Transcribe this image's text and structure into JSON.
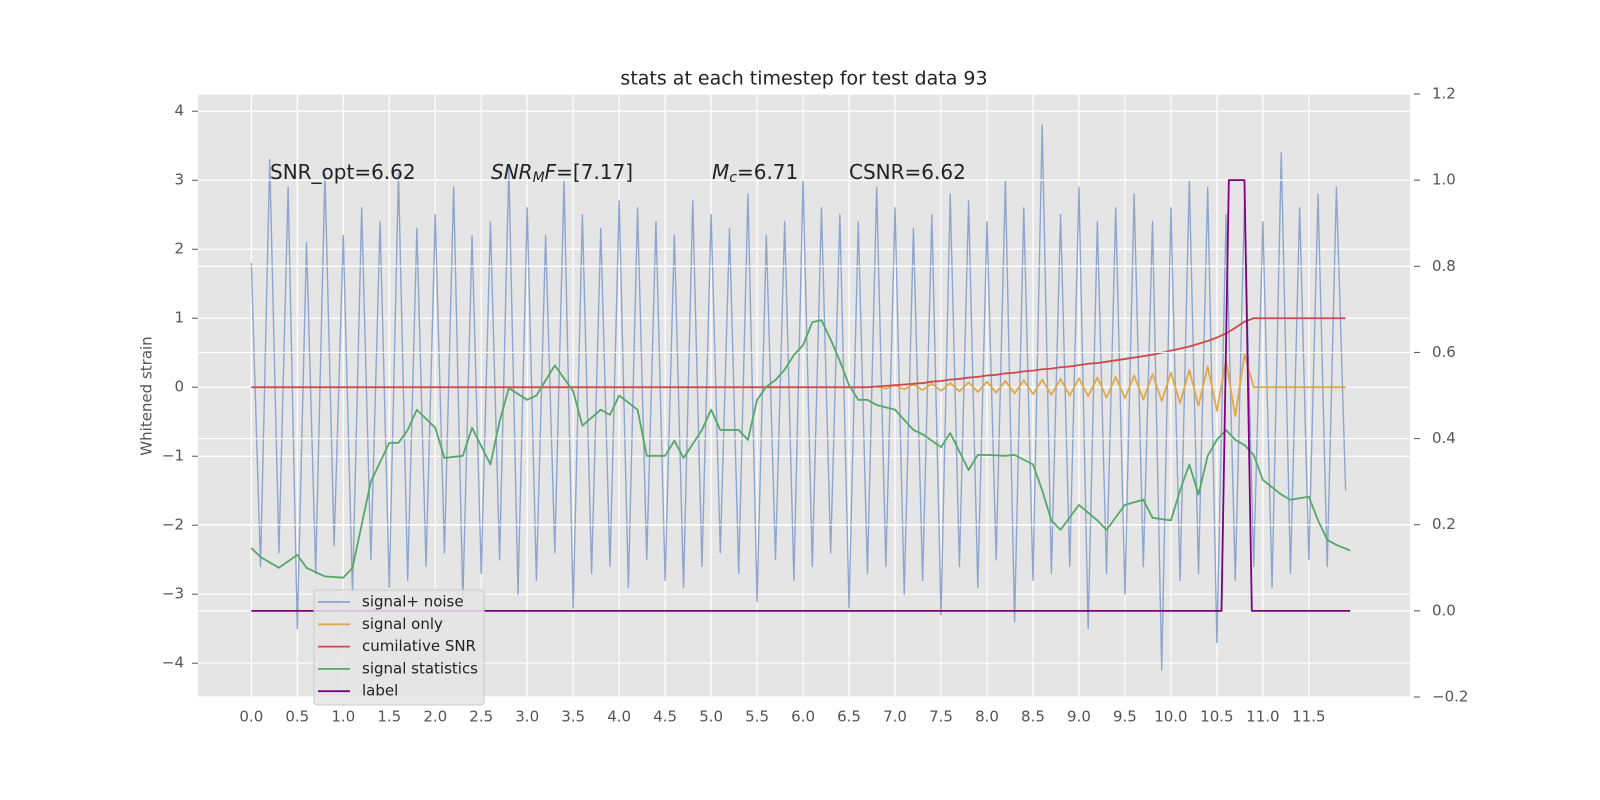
{
  "chart_data": {
    "type": "line",
    "title": "stats at each timestep for test data 93",
    "ylabel": "Whitened strain",
    "annotations": [
      {
        "parts": [
          {
            "text": "SNR_opt=6.62"
          }
        ]
      },
      {
        "parts": [
          {
            "text": "SNR",
            "italic": true
          },
          {
            "text": "M",
            "italic": true,
            "sub": true
          },
          {
            "text": "F",
            "italic": true
          },
          {
            "text": "=[7.17]"
          }
        ]
      },
      {
        "parts": [
          {
            "text": "M",
            "italic": true
          },
          {
            "text": "c",
            "italic": true,
            "sub": true
          },
          {
            "text": "=6.71"
          }
        ]
      },
      {
        "parts": [
          {
            "text": "CSNR=6.62"
          }
        ]
      }
    ],
    "xlim": [
      -0.58,
      12.6
    ],
    "ylim": [
      -4.49,
      4.25
    ],
    "y2lim": [
      -0.2,
      1.2
    ],
    "grid": true,
    "xticks": [
      {
        "value": 0,
        "label": "0.0"
      },
      {
        "value": 0.5,
        "label": "0.5"
      },
      {
        "value": 1,
        "label": "1.0"
      },
      {
        "value": 1.5,
        "label": "1.5"
      },
      {
        "value": 2,
        "label": "2.0"
      },
      {
        "value": 2.5,
        "label": "2.5"
      },
      {
        "value": 3,
        "label": "3.0"
      },
      {
        "value": 3.5,
        "label": "3.5"
      },
      {
        "value": 4,
        "label": "4.0"
      },
      {
        "value": 4.5,
        "label": "4.5"
      },
      {
        "value": 5,
        "label": "5.0"
      },
      {
        "value": 5.5,
        "label": "5.5"
      },
      {
        "value": 6,
        "label": "6.0"
      },
      {
        "value": 6.5,
        "label": "6.5"
      },
      {
        "value": 7,
        "label": "7.0"
      },
      {
        "value": 7.5,
        "label": "7.5"
      },
      {
        "value": 8,
        "label": "8.0"
      },
      {
        "value": 8.5,
        "label": "8.5"
      },
      {
        "value": 9,
        "label": "9.0"
      },
      {
        "value": 9.5,
        "label": "9.5"
      },
      {
        "value": 10,
        "label": "10.0"
      },
      {
        "value": 10.5,
        "label": "10.5"
      },
      {
        "value": 11,
        "label": "11.0"
      },
      {
        "value": 11.5,
        "label": "11.5"
      }
    ],
    "yticks": [
      {
        "value": -4,
        "label": "−4"
      },
      {
        "value": -3,
        "label": "−3"
      },
      {
        "value": -2,
        "label": "−2"
      },
      {
        "value": -1,
        "label": "−1"
      },
      0,
      1,
      2,
      3,
      4
    ],
    "y2ticks": [
      {
        "value": -0.2,
        "label": "−0.2"
      },
      {
        "value": 0,
        "label": "0.0"
      },
      {
        "value": 0.2,
        "label": "0.2"
      },
      {
        "value": 0.4,
        "label": "0.4"
      },
      {
        "value": 0.6,
        "label": "0.6"
      },
      {
        "value": 0.8,
        "label": "0.8"
      },
      {
        "value": 1,
        "label": "1.0"
      },
      {
        "value": 1.2,
        "label": "1.2"
      }
    ],
    "x": [
      0,
      0.1,
      0.2,
      0.3,
      0.4,
      0.5,
      0.6,
      0.7,
      0.8,
      0.9,
      1,
      1.1,
      1.2,
      1.3,
      1.4,
      1.5,
      1.6,
      1.7,
      1.8,
      1.9,
      2,
      2.1,
      2.2,
      2.3,
      2.4,
      2.5,
      2.6,
      2.7,
      2.8,
      2.9,
      3,
      3.1,
      3.2,
      3.3,
      3.4,
      3.5,
      3.6,
      3.7,
      3.8,
      3.9,
      4,
      4.1,
      4.2,
      4.3,
      4.4,
      4.5,
      4.6,
      4.7,
      4.8,
      4.9,
      5,
      5.1,
      5.2,
      5.3,
      5.4,
      5.5,
      5.6,
      5.7,
      5.8,
      5.9,
      6,
      6.1,
      6.2,
      6.3,
      6.4,
      6.5,
      6.6,
      6.7,
      6.8,
      6.9,
      7,
      7.1,
      7.2,
      7.3,
      7.4,
      7.5,
      7.6,
      7.7,
      7.8,
      7.9,
      8,
      8.1,
      8.2,
      8.3,
      8.4,
      8.5,
      8.6,
      8.7,
      8.8,
      8.9,
      9,
      9.1,
      9.2,
      9.3,
      9.4,
      9.5,
      9.6,
      9.7,
      9.8,
      9.9,
      10,
      10.1,
      10.2,
      10.3,
      10.4,
      10.5,
      10.6,
      10.7,
      10.8,
      10.9,
      11,
      11.1,
      11.2,
      11.3,
      11.4,
      11.5,
      11.6,
      11.7,
      11.8,
      11.9
    ],
    "series": [
      {
        "name": "signal+ noise",
        "color": "#8fa5cd",
        "values": [
          1.8,
          -2.6,
          3.3,
          -2.4,
          2.9,
          -3.5,
          2.1,
          -2.7,
          3.1,
          -2.3,
          2.2,
          -3.0,
          2.6,
          -2.5,
          2.4,
          -2.9,
          3.1,
          -2.8,
          2.3,
          -2.6,
          2.5,
          -2.4,
          2.9,
          -3.1,
          2.2,
          -2.7,
          2.4,
          -2.5,
          3.2,
          -3.0,
          2.6,
          -2.8,
          2.2,
          -2.4,
          3.0,
          -3.2,
          2.5,
          -2.7,
          2.3,
          -2.6,
          2.7,
          -2.9,
          2.6,
          -2.5,
          2.4,
          -2.8,
          2.2,
          -2.9,
          2.7,
          -2.6,
          2.5,
          -2.4,
          2.3,
          -2.7,
          2.8,
          -3.1,
          2.2,
          -2.5,
          2.4,
          -2.8,
          3.0,
          -2.6,
          2.6,
          -2.4,
          2.5,
          -3.2,
          2.4,
          -2.7,
          2.9,
          -2.6,
          2.6,
          -3.0,
          2.3,
          -2.8,
          2.5,
          -3.3,
          2.8,
          -2.6,
          2.7,
          -2.9,
          2.4,
          -2.5,
          3.0,
          -3.4,
          2.6,
          -2.8,
          3.8,
          -2.7,
          2.5,
          -2.6,
          2.9,
          -3.5,
          2.4,
          -2.7,
          2.6,
          -3.0,
          2.8,
          -2.6,
          2.4,
          -4.1,
          2.6,
          -2.8,
          3.0,
          -2.7,
          2.9,
          -3.7,
          2.5,
          -2.8,
          2.7,
          -2.6,
          2.4,
          -2.9,
          3.4,
          -2.7,
          2.6,
          -2.5,
          2.8,
          -2.6,
          2.9,
          -1.5
        ]
      },
      {
        "name": "signal only",
        "color": "#e0a94a",
        "values": [
          0,
          0,
          0,
          0,
          0,
          0,
          0,
          0,
          0,
          0,
          0,
          0,
          0,
          0,
          0,
          0,
          0,
          0,
          0,
          0,
          0,
          0,
          0,
          0,
          0,
          0,
          0,
          0,
          0,
          0,
          0,
          0,
          0,
          0,
          0,
          0,
          0,
          0,
          0,
          0,
          0,
          0,
          0,
          0,
          0,
          0,
          0,
          0,
          0,
          0,
          0,
          0,
          0,
          0,
          0,
          0,
          0,
          0,
          0,
          0,
          0,
          0,
          0,
          0,
          0,
          0,
          0,
          0,
          0.01,
          -0.02,
          0.03,
          -0.03,
          0.04,
          -0.04,
          0.05,
          -0.05,
          0.06,
          -0.06,
          0.07,
          -0.07,
          0.08,
          -0.08,
          0.09,
          -0.09,
          0.1,
          -0.1,
          0.11,
          -0.11,
          0.12,
          -0.12,
          0.13,
          -0.13,
          0.14,
          -0.15,
          0.15,
          -0.16,
          0.17,
          -0.18,
          0.19,
          -0.2,
          0.21,
          -0.23,
          0.25,
          -0.27,
          0.3,
          -0.34,
          0.38,
          -0.42,
          0.48,
          0,
          0,
          0,
          0,
          0,
          0,
          0,
          0,
          0,
          0,
          0
        ]
      },
      {
        "name": "cumilative SNR",
        "color": "#d0474a",
        "values": [
          0,
          0,
          0,
          0,
          0,
          0,
          0,
          0,
          0,
          0,
          0,
          0,
          0,
          0,
          0,
          0,
          0,
          0,
          0,
          0,
          0,
          0,
          0,
          0,
          0,
          0,
          0,
          0,
          0,
          0,
          0,
          0,
          0,
          0,
          0,
          0,
          0,
          0,
          0,
          0,
          0,
          0,
          0,
          0,
          0,
          0,
          0,
          0,
          0,
          0,
          0,
          0,
          0,
          0,
          0,
          0,
          0,
          0,
          0,
          0,
          0,
          0,
          0,
          0,
          0,
          0,
          0,
          0,
          0.01,
          0.02,
          0.03,
          0.04,
          0.05,
          0.06,
          0.08,
          0.09,
          0.11,
          0.12,
          0.14,
          0.15,
          0.17,
          0.18,
          0.2,
          0.21,
          0.23,
          0.24,
          0.26,
          0.27,
          0.29,
          0.3,
          0.32,
          0.34,
          0.35,
          0.37,
          0.39,
          0.41,
          0.43,
          0.45,
          0.47,
          0.5,
          0.53,
          0.56,
          0.59,
          0.63,
          0.67,
          0.72,
          0.78,
          0.86,
          0.95,
          1,
          1,
          1,
          1,
          1,
          1,
          1,
          1,
          1,
          1,
          1
        ]
      },
      {
        "name": "signal statistics",
        "color": "#55a868",
        "axis": "y2",
        "x": [
          0,
          0.1,
          0.3,
          0.5,
          0.6,
          0.8,
          1,
          1.1,
          1.3,
          1.5,
          1.6,
          1.7,
          1.8,
          2,
          2.1,
          2.3,
          2.4,
          2.6,
          2.7,
          2.8,
          3,
          3.1,
          3.3,
          3.5,
          3.6,
          3.8,
          3.9,
          4,
          4.2,
          4.3,
          4.5,
          4.6,
          4.7,
          4.9,
          5,
          5.1,
          5.3,
          5.4,
          5.5,
          5.6,
          5.7,
          5.8,
          5.9,
          6,
          6.1,
          6.2,
          6.3,
          6.4,
          6.5,
          6.6,
          6.7,
          6.8,
          7,
          7.2,
          7.3,
          7.5,
          7.6,
          7.8,
          7.9,
          8,
          8.2,
          8.3,
          8.5,
          8.6,
          8.7,
          8.8,
          9,
          9.2,
          9.3,
          9.5,
          9.7,
          9.8,
          10,
          10.1,
          10.2,
          10.3,
          10.4,
          10.5,
          10.6,
          10.7,
          10.8,
          10.9,
          11,
          11.2,
          11.3,
          11.5,
          11.6,
          11.7,
          11.8,
          11.95
        ],
        "values": [
          0.146,
          0.125,
          0.1,
          0.13,
          0.1,
          0.08,
          0.077,
          0.1,
          0.3,
          0.39,
          0.39,
          0.42,
          0.467,
          0.425,
          0.355,
          0.36,
          0.425,
          0.34,
          0.44,
          0.517,
          0.49,
          0.5,
          0.57,
          0.51,
          0.43,
          0.467,
          0.455,
          0.5,
          0.467,
          0.36,
          0.36,
          0.395,
          0.355,
          0.42,
          0.467,
          0.42,
          0.42,
          0.397,
          0.49,
          0.52,
          0.536,
          0.56,
          0.594,
          0.617,
          0.67,
          0.675,
          0.63,
          0.58,
          0.524,
          0.49,
          0.49,
          0.478,
          0.467,
          0.42,
          0.41,
          0.38,
          0.413,
          0.327,
          0.362,
          0.362,
          0.36,
          0.362,
          0.34,
          0.28,
          0.21,
          0.188,
          0.246,
          0.21,
          0.188,
          0.246,
          0.258,
          0.216,
          0.21,
          0.28,
          0.34,
          0.27,
          0.36,
          0.397,
          0.42,
          0.397,
          0.385,
          0.362,
          0.304,
          0.27,
          0.258,
          0.265,
          0.21,
          0.165,
          0.153,
          0.14
        ]
      },
      {
        "name": "label",
        "color": "#800080",
        "axis": "y2",
        "x": [
          0,
          10.55,
          10.63,
          10.8,
          10.88,
          11.95
        ],
        "values": [
          0,
          0,
          1,
          1,
          0,
          0
        ]
      }
    ]
  }
}
